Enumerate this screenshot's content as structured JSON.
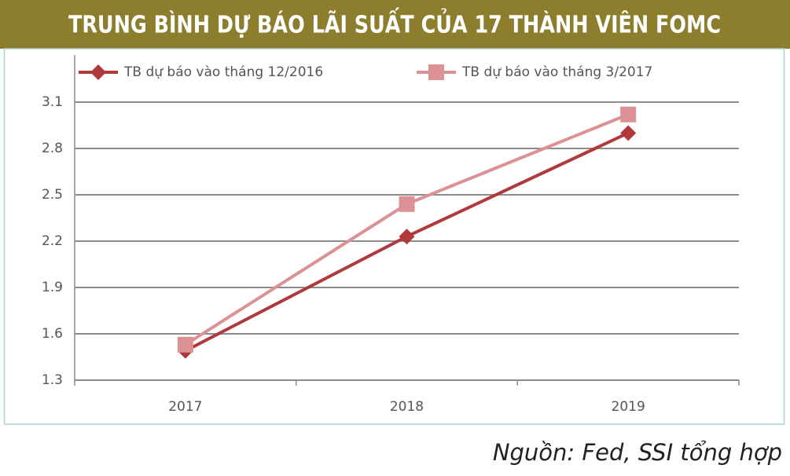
{
  "chart_data": {
    "type": "line",
    "title": "TRUNG BÌNH DỰ BÁO LÃI SUẤT CỦA 17 THÀNH VIÊN FOMC",
    "source": "Nguồn: Fed, SSI tổng hợp",
    "categories": [
      "2017",
      "2018",
      "2019"
    ],
    "series": [
      {
        "name": "TB dự báo vào tháng 12/2016",
        "color": "#b0393b",
        "marker": "diamond",
        "values": [
          1.49,
          2.23,
          2.9
        ]
      },
      {
        "name": "TB dự báo vào tháng 3/2017",
        "color": "#dc9194",
        "marker": "square",
        "values": [
          1.53,
          2.44,
          3.02
        ]
      }
    ],
    "ylim": [
      1.3,
      3.1
    ],
    "yticks": [
      1.3,
      1.6,
      1.9,
      2.2,
      2.5,
      2.8,
      3.1
    ],
    "grid": true,
    "legend": "top"
  }
}
